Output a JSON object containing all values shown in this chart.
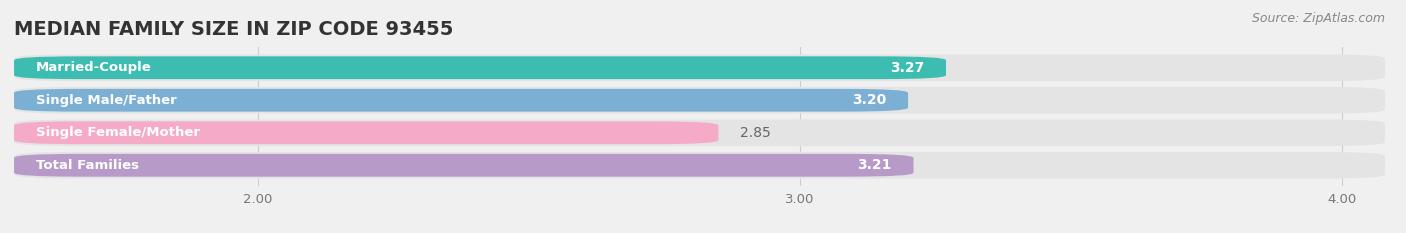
{
  "title": "MEDIAN FAMILY SIZE IN ZIP CODE 93455",
  "source": "Source: ZipAtlas.com",
  "categories": [
    "Married-Couple",
    "Single Male/Father",
    "Single Female/Mother",
    "Total Families"
  ],
  "values": [
    3.27,
    3.2,
    2.85,
    3.21
  ],
  "bar_colors": [
    "#3dbdb1",
    "#7bafd4",
    "#f5aac8",
    "#b89ac8"
  ],
  "xlim_left": 1.55,
  "xlim_right": 4.08,
  "xticks": [
    2.0,
    3.0,
    4.0
  ],
  "xtick_labels": [
    "2.00",
    "3.00",
    "4.00"
  ],
  "bg_color": "#f0f0f0",
  "bar_bg_color": "#e4e4e4",
  "title_fontsize": 14,
  "label_fontsize": 9.5,
  "value_fontsize": 10,
  "source_fontsize": 9
}
